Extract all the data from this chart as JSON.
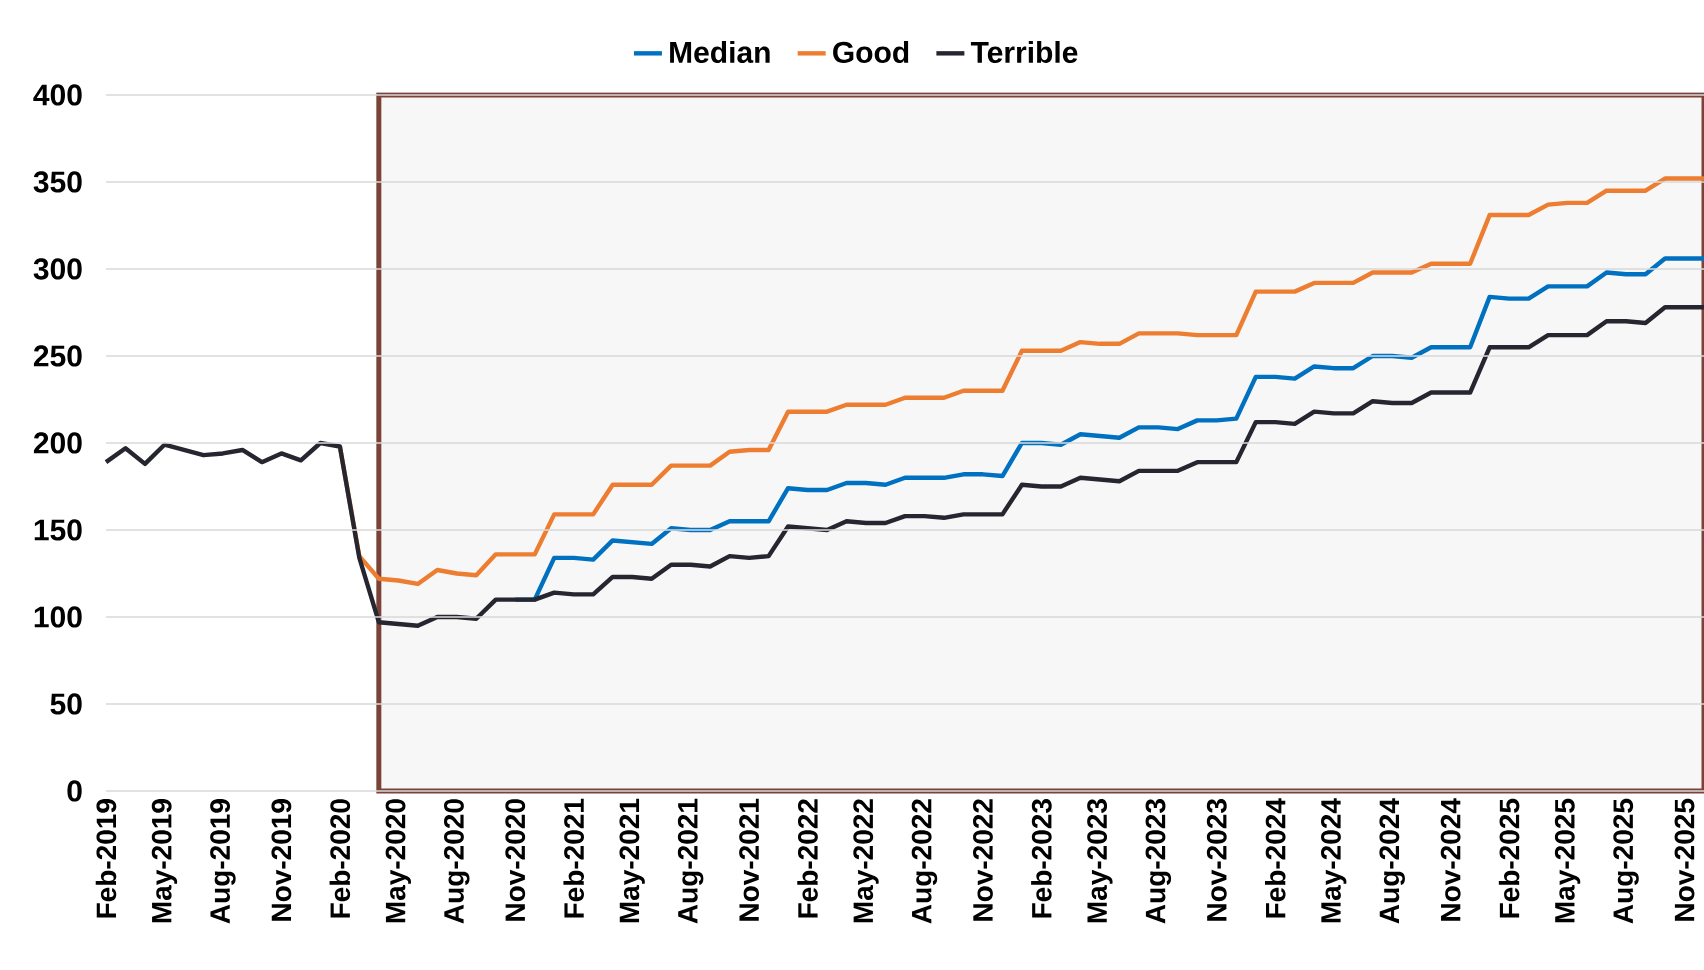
{
  "chart_data": {
    "type": "line",
    "x": [
      "2019-02",
      "2019-03",
      "2019-04",
      "2019-05",
      "2019-06",
      "2019-07",
      "2019-08",
      "2019-09",
      "2019-10",
      "2019-11",
      "2019-12",
      "2020-01",
      "2020-02",
      "2020-03",
      "2020-04",
      "2020-05",
      "2020-06",
      "2020-07",
      "2020-08",
      "2020-09",
      "2020-10",
      "2020-11",
      "2020-12",
      "2021-01",
      "2021-02",
      "2021-03",
      "2021-04",
      "2021-05",
      "2021-06",
      "2021-07",
      "2021-08",
      "2021-09",
      "2021-10",
      "2021-11",
      "2021-12",
      "2022-01",
      "2022-02",
      "2022-03",
      "2022-04",
      "2022-05",
      "2022-06",
      "2022-07",
      "2022-08",
      "2022-09",
      "2022-10",
      "2022-11",
      "2022-12",
      "2023-01",
      "2023-02",
      "2023-03",
      "2023-04",
      "2023-05",
      "2023-06",
      "2023-07",
      "2023-08",
      "2023-09",
      "2023-10",
      "2023-11",
      "2023-12",
      "2024-01",
      "2024-02",
      "2024-03",
      "2024-04",
      "2024-05",
      "2024-06",
      "2024-07",
      "2024-08",
      "2024-09",
      "2024-10",
      "2024-11",
      "2024-12",
      "2025-01",
      "2025-02",
      "2025-03",
      "2025-04",
      "2025-05",
      "2025-06",
      "2025-07",
      "2025-08",
      "2025-09",
      "2025-10",
      "2025-11",
      "2025-12"
    ],
    "series": [
      {
        "name": "Median",
        "color": "#0070c0",
        "values": [
          null,
          null,
          null,
          null,
          null,
          null,
          null,
          null,
          null,
          null,
          null,
          null,
          null,
          null,
          null,
          null,
          null,
          null,
          null,
          null,
          null,
          110,
          110,
          134,
          134,
          133,
          144,
          143,
          142,
          151,
          150,
          150,
          155,
          155,
          155,
          174,
          173,
          173,
          177,
          177,
          176,
          180,
          180,
          180,
          182,
          182,
          181,
          200,
          200,
          199,
          205,
          204,
          203,
          209,
          209,
          208,
          213,
          213,
          214,
          238,
          238,
          237,
          244,
          243,
          243,
          250,
          250,
          249,
          255,
          255,
          255,
          284,
          283,
          283,
          290,
          290,
          290,
          298,
          297,
          297,
          306,
          306,
          306
        ]
      },
      {
        "name": "Good",
        "color": "#ed7d31",
        "values": [
          null,
          null,
          null,
          null,
          null,
          null,
          null,
          null,
          null,
          null,
          null,
          null,
          198,
          135,
          122,
          121,
          119,
          127,
          125,
          124,
          136,
          136,
          136,
          159,
          159,
          159,
          176,
          176,
          176,
          187,
          187,
          187,
          195,
          196,
          196,
          218,
          218,
          218,
          222,
          222,
          222,
          226,
          226,
          226,
          230,
          230,
          230,
          253,
          253,
          253,
          258,
          257,
          257,
          263,
          263,
          263,
          262,
          262,
          262,
          287,
          287,
          287,
          292,
          292,
          292,
          298,
          298,
          298,
          303,
          303,
          303,
          331,
          331,
          331,
          337,
          338,
          338,
          345,
          345,
          345,
          352,
          352,
          352
        ]
      },
      {
        "name": "Terrible",
        "color": "#262631",
        "values": [
          189,
          197,
          188,
          199,
          196,
          193,
          194,
          196,
          189,
          194,
          190,
          200,
          198,
          134,
          97,
          96,
          95,
          100,
          100,
          99,
          110,
          110,
          110,
          114,
          113,
          113,
          123,
          123,
          122,
          130,
          130,
          129,
          135,
          134,
          135,
          152,
          151,
          150,
          155,
          154,
          154,
          158,
          158,
          157,
          159,
          159,
          159,
          176,
          175,
          175,
          180,
          179,
          178,
          184,
          184,
          184,
          189,
          189,
          189,
          212,
          212,
          211,
          218,
          217,
          217,
          224,
          223,
          223,
          229,
          229,
          229,
          255,
          255,
          255,
          262,
          262,
          262,
          270,
          270,
          269,
          278,
          278,
          278
        ]
      }
    ],
    "xlim": [
      "2019-02",
      "2025-12"
    ],
    "xticks": [
      {
        "value": "2019-02",
        "label": "Feb-2019"
      },
      {
        "value": "2019-05",
        "label": "May-2019"
      },
      {
        "value": "2019-08",
        "label": "Aug-2019"
      },
      {
        "value": "2019-11",
        "label": "Nov-2019"
      },
      {
        "value": "2020-02",
        "label": "Feb-2020"
      },
      {
        "value": "2020-05",
        "label": "May-2020"
      },
      {
        "value": "2020-08",
        "label": "Aug-2020"
      },
      {
        "value": "2020-11",
        "label": "Nov-2020"
      },
      {
        "value": "2021-02",
        "label": "Feb-2021"
      },
      {
        "value": "2021-05",
        "label": "May-2021"
      },
      {
        "value": "2021-08",
        "label": "Aug-2021"
      },
      {
        "value": "2021-11",
        "label": "Nov-2021"
      },
      {
        "value": "2022-02",
        "label": "Feb-2022"
      },
      {
        "value": "2022-05",
        "label": "May-2022"
      },
      {
        "value": "2022-08",
        "label": "Aug-2022"
      },
      {
        "value": "2022-11",
        "label": "Nov-2022"
      },
      {
        "value": "2023-02",
        "label": "Feb-2023"
      },
      {
        "value": "2023-05",
        "label": "May-2023"
      },
      {
        "value": "2023-08",
        "label": "Aug-2023"
      },
      {
        "value": "2023-11",
        "label": "Nov-2023"
      },
      {
        "value": "2024-02",
        "label": "Feb-2024"
      },
      {
        "value": "2024-05",
        "label": "May-2024"
      },
      {
        "value": "2024-08",
        "label": "Aug-2024"
      },
      {
        "value": "2024-11",
        "label": "Nov-2024"
      },
      {
        "value": "2025-02",
        "label": "Feb-2025"
      },
      {
        "value": "2025-05",
        "label": "May-2025"
      },
      {
        "value": "2025-08",
        "label": "Aug-2025"
      },
      {
        "value": "2025-11",
        "label": "Nov-2025"
      }
    ],
    "ylim": [
      0,
      400
    ],
    "yticks": [
      0,
      50,
      100,
      150,
      200,
      250,
      300,
      350,
      400
    ],
    "bands": [
      {
        "axis": "x",
        "from": "2020-04",
        "to": "2025-12",
        "color": "#f7f7f7"
      }
    ],
    "grid": "y",
    "legend": "top",
    "marker": "none",
    "line_style": "solid"
  }
}
